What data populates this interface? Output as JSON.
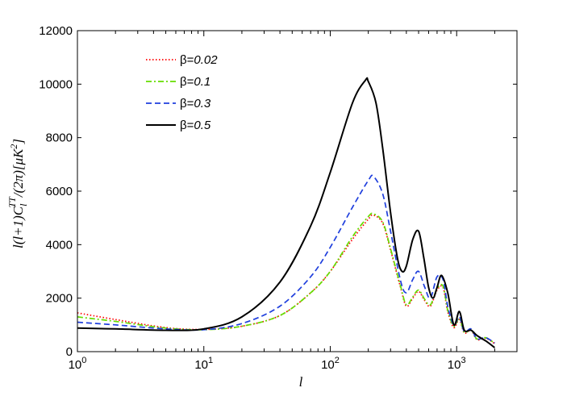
{
  "chart_data": {
    "type": "line",
    "xlabel": "l",
    "ylabel": "l(l+1)C_l^TT/(2π)[μK²]",
    "xscale": "log",
    "xlim": [
      1,
      3000
    ],
    "ylim": [
      0,
      12000
    ],
    "x_ticks": [
      {
        "value": 1,
        "base": "10",
        "exp": "0"
      },
      {
        "value": 10,
        "base": "10",
        "exp": "1"
      },
      {
        "value": 100,
        "base": "10",
        "exp": "2"
      },
      {
        "value": 1000,
        "base": "10",
        "exp": "3"
      }
    ],
    "y_ticks": [
      0,
      2000,
      4000,
      6000,
      8000,
      10000,
      12000
    ],
    "legend_position": "top-left",
    "series": [
      {
        "name": "β=0.02",
        "name_symbol": "β=",
        "name_value": "0.02",
        "color": "#ff0000",
        "dash": "dotted",
        "x": [
          1,
          2,
          5,
          10,
          20,
          40,
          70,
          100,
          150,
          200,
          220,
          260,
          300,
          360,
          400,
          450,
          500,
          560,
          620,
          700,
          780,
          850,
          950,
          1050,
          1150,
          1300,
          1450,
          1700,
          2000
        ],
        "y": [
          1450,
          1200,
          900,
          830,
          950,
          1350,
          2200,
          3000,
          4200,
          4950,
          5100,
          4800,
          3800,
          2400,
          1700,
          2000,
          2250,
          1900,
          1700,
          2300,
          2400,
          1500,
          900,
          1200,
          700,
          800,
          450,
          500,
          300
        ]
      },
      {
        "name": "β=0.1",
        "name_symbol": "β=",
        "name_value": "0.1",
        "color": "#66dd00",
        "dash": "dashdot",
        "x": [
          1,
          2,
          5,
          10,
          20,
          40,
          70,
          100,
          150,
          200,
          220,
          260,
          300,
          360,
          400,
          450,
          500,
          560,
          620,
          700,
          780,
          850,
          950,
          1050,
          1150,
          1300,
          1450,
          1700,
          2000
        ],
        "y": [
          1300,
          1130,
          880,
          820,
          950,
          1350,
          2200,
          3000,
          4300,
          5050,
          5150,
          4850,
          3850,
          2450,
          1750,
          2050,
          2300,
          1950,
          1750,
          2350,
          2450,
          1550,
          950,
          1250,
          720,
          820,
          470,
          520,
          310
        ]
      },
      {
        "name": "β=0.3",
        "name_symbol": "β=",
        "name_value": "0.3",
        "color": "#1f3fdd",
        "dash": "dashed",
        "x": [
          1,
          2,
          5,
          10,
          20,
          40,
          70,
          100,
          150,
          200,
          220,
          260,
          300,
          360,
          400,
          450,
          500,
          560,
          620,
          700,
          780,
          850,
          950,
          1050,
          1150,
          1300,
          1450,
          1700,
          2000
        ],
        "y": [
          1100,
          1000,
          850,
          820,
          1050,
          1700,
          2800,
          3900,
          5400,
          6400,
          6550,
          5900,
          4500,
          2650,
          2200,
          2700,
          3000,
          2400,
          2000,
          2800,
          2700,
          1700,
          1000,
          1300,
          750,
          850,
          480,
          520,
          320
        ]
      },
      {
        "name": "β=0.5",
        "name_symbol": "β=",
        "name_value": "0.5",
        "color": "#000000",
        "dash": "solid",
        "x": [
          1,
          2,
          5,
          10,
          20,
          40,
          70,
          100,
          150,
          190,
          200,
          230,
          260,
          300,
          340,
          370,
          400,
          450,
          500,
          550,
          600,
          650,
          700,
          760,
          850,
          950,
          1050,
          1150,
          1300,
          1450,
          1700,
          2000
        ],
        "y": [
          880,
          850,
          800,
          850,
          1300,
          2600,
          4700,
          6700,
          9300,
          10150,
          10100,
          9300,
          7600,
          5200,
          3500,
          3000,
          3200,
          4200,
          4500,
          3500,
          2400,
          2000,
          2400,
          2850,
          2200,
          1000,
          1500,
          800,
          800,
          600,
          400,
          150
        ]
      }
    ]
  }
}
